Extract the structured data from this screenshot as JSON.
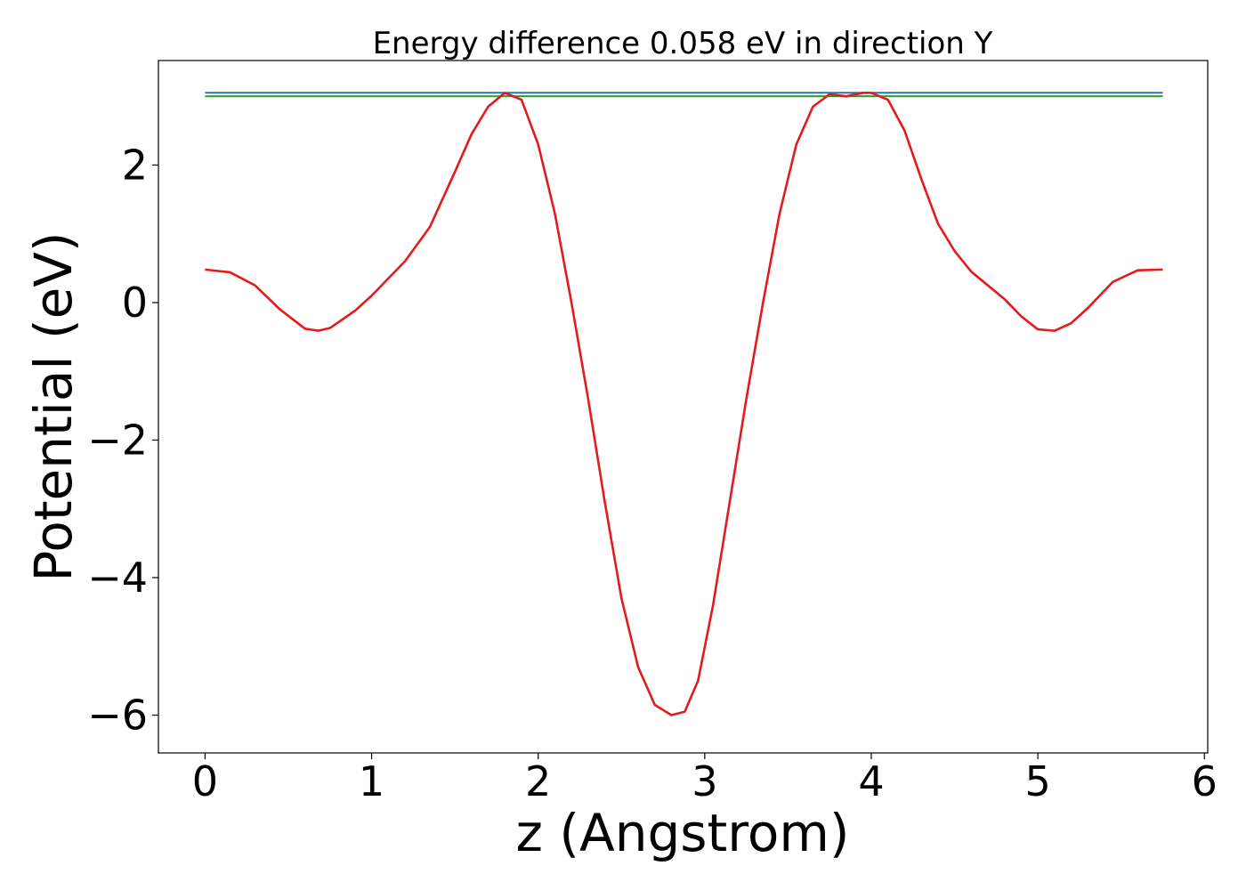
{
  "chart_data": {
    "type": "line",
    "title": "Energy difference 0.058 eV in direction Y",
    "xlabel": "z (Angstrom)",
    "ylabel": "Potential (eV)",
    "xlim": [
      -0.28,
      6.02
    ],
    "ylim": [
      -6.55,
      3.52
    ],
    "x_ticks": [
      0,
      1,
      2,
      3,
      4,
      5,
      6
    ],
    "y_ticks": [
      -6,
      -4,
      -2,
      0,
      2
    ],
    "x_tick_labels": [
      "0",
      "1",
      "2",
      "3",
      "4",
      "5",
      "6"
    ],
    "y_tick_labels": [
      "−6",
      "−4",
      "−2",
      "0",
      "2"
    ],
    "grid": false,
    "series": [
      {
        "color": "#1f77b4",
        "x": [
          0,
          5.75
        ],
        "y": [
          3.05,
          3.05
        ]
      },
      {
        "color": "#2ca02c",
        "x": [
          0,
          5.75
        ],
        "y": [
          3.0,
          3.0
        ]
      },
      {
        "color": "#e41a1c",
        "x": [
          0.0,
          0.15,
          0.3,
          0.45,
          0.6,
          0.68,
          0.75,
          0.9,
          1.0,
          1.2,
          1.35,
          1.5,
          1.6,
          1.7,
          1.8,
          1.9,
          2.0,
          2.1,
          2.2,
          2.3,
          2.4,
          2.5,
          2.6,
          2.7,
          2.8,
          2.88,
          2.96,
          3.05,
          3.15,
          3.25,
          3.35,
          3.45,
          3.55,
          3.65,
          3.75,
          3.85,
          3.95,
          4.0,
          4.1,
          4.2,
          4.3,
          4.4,
          4.5,
          4.6,
          4.8,
          4.9,
          5.0,
          5.1,
          5.2,
          5.3,
          5.45,
          5.6,
          5.75
        ],
        "y": [
          0.48,
          0.44,
          0.25,
          -0.1,
          -0.38,
          -0.41,
          -0.37,
          -0.12,
          0.1,
          0.6,
          1.1,
          1.9,
          2.45,
          2.85,
          3.05,
          2.95,
          2.3,
          1.3,
          0.0,
          -1.4,
          -2.9,
          -4.3,
          -5.3,
          -5.85,
          -6.0,
          -5.95,
          -5.5,
          -4.4,
          -2.9,
          -1.4,
          0.0,
          1.3,
          2.3,
          2.85,
          3.03,
          3.0,
          3.05,
          3.05,
          2.95,
          2.5,
          1.8,
          1.15,
          0.75,
          0.45,
          0.05,
          -0.2,
          -0.39,
          -0.41,
          -0.3,
          -0.08,
          0.3,
          0.47,
          0.48
        ]
      }
    ]
  }
}
